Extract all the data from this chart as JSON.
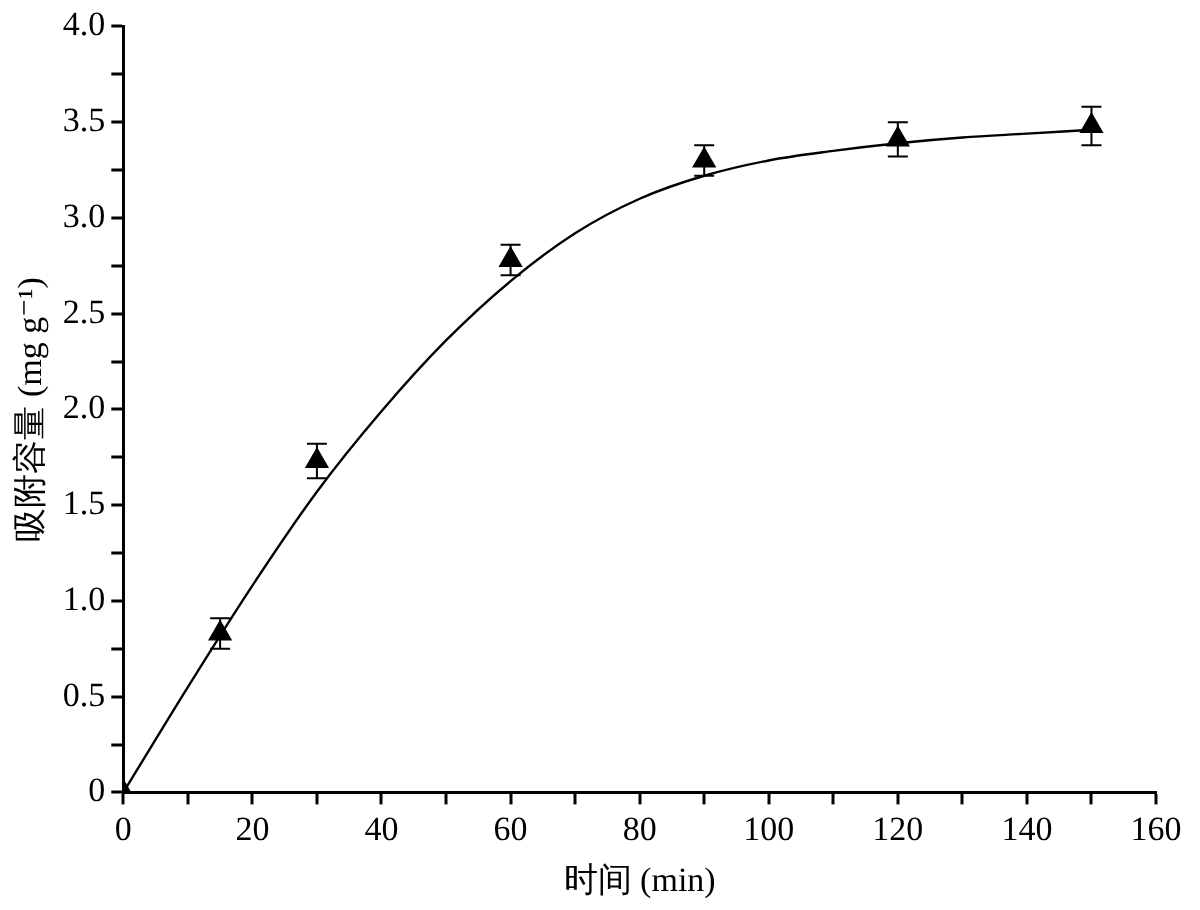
{
  "chart_data": {
    "type": "scatter",
    "xlabel": "时间 (min)",
    "ylabel": "吸附容量 (mg g⁻¹)",
    "series": [
      {
        "color": "#000000",
        "marker": "triangle",
        "x": [
          0,
          15,
          30,
          60,
          90,
          120,
          150
        ],
        "values": [
          0,
          0.83,
          1.73,
          2.78,
          3.3,
          3.41,
          3.48
        ],
        "errors": [
          null,
          0.08,
          0.09,
          0.08,
          0.08,
          0.09,
          0.1
        ]
      },
      {
        "type": "line",
        "color": "#000000",
        "marker": "none",
        "line_style": "solid",
        "x": [
          0,
          10,
          20,
          30,
          40,
          50,
          60,
          70,
          80,
          90,
          100,
          110,
          120,
          130,
          140,
          150
        ],
        "values": [
          0,
          0.55,
          1.08,
          1.57,
          1.99,
          2.36,
          2.67,
          2.92,
          3.1,
          3.22,
          3.3,
          3.35,
          3.39,
          3.42,
          3.44,
          3.46
        ]
      }
    ],
    "xlim": [
      0,
      160
    ],
    "ylim": [
      0,
      4
    ],
    "xticks": [
      0,
      {
        "value": 10,
        "label": null
      },
      20,
      {
        "value": 30,
        "label": null
      },
      40,
      {
        "value": 50,
        "label": null
      },
      60,
      {
        "value": 70,
        "label": null
      },
      80,
      {
        "value": 90,
        "label": null
      },
      100,
      {
        "value": 110,
        "label": null
      },
      120,
      {
        "value": 130,
        "label": null
      },
      140,
      {
        "value": 150,
        "label": null
      },
      160
    ],
    "yticks": [
      0,
      {
        "value": 0.25,
        "label": null
      },
      0.5,
      {
        "value": 0.75,
        "label": null
      },
      {
        "value": 1,
        "label": "1.0"
      },
      {
        "value": 1.25,
        "label": null
      },
      1.5,
      {
        "value": 1.75,
        "label": null
      },
      {
        "value": 2,
        "label": "2.0"
      },
      {
        "value": 2.25,
        "label": null
      },
      2.5,
      {
        "value": 2.75,
        "label": null
      },
      {
        "value": 3,
        "label": "3.0"
      },
      {
        "value": 3.25,
        "label": null
      },
      3.5,
      {
        "value": 3.75,
        "label": null
      },
      {
        "value": 4,
        "label": "4.0"
      }
    ],
    "grid": false,
    "legend": false
  }
}
